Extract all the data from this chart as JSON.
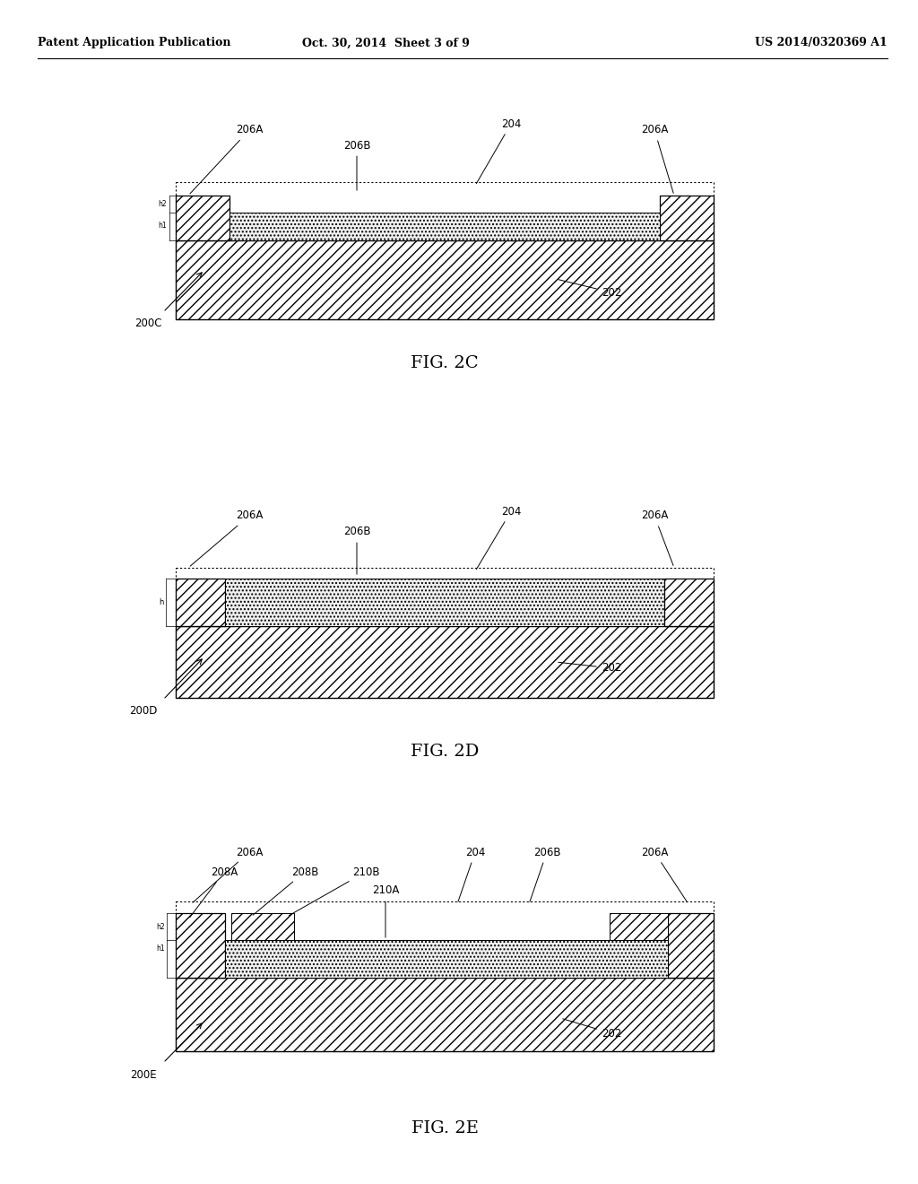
{
  "header_left": "Patent Application Publication",
  "header_mid": "Oct. 30, 2014  Sheet 3 of 9",
  "header_right": "US 2014/0320369 A1",
  "bg_color": "#ffffff",
  "fig2c": {
    "label": "FIG. 2C",
    "diagram_id": "200C",
    "base_label": "202",
    "outer_label": "204",
    "left_block_label": "206A",
    "center_label": "206B",
    "right_block_label": "206A",
    "h1": "h1",
    "h2": "h2"
  },
  "fig2d": {
    "label": "FIG. 2D",
    "diagram_id": "200D",
    "base_label": "202",
    "outer_label": "204",
    "left_block_label": "206A",
    "center_label": "206B",
    "right_block_label": "206A",
    "h": "h"
  },
  "fig2e": {
    "label": "FIG. 2E",
    "diagram_id": "200E",
    "base_label": "202",
    "outer_label": "204",
    "left_block_label": "206A",
    "right_block_label": "206A",
    "center_label": "206B",
    "label_208A": "208A",
    "label_208B": "208B",
    "label_210A": "210A",
    "label_210B": "210B",
    "h1": "h1",
    "h2": "h2"
  }
}
